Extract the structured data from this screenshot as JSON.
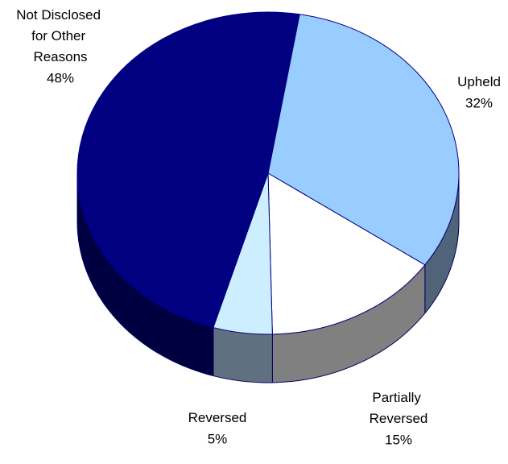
{
  "chart_data": {
    "type": "pie3d",
    "categories": [
      "Upheld",
      "Partially Reversed",
      "Reversed",
      "Not Disclosed for Other Reasons"
    ],
    "values": [
      32,
      15,
      5,
      48
    ],
    "value_labels": [
      "32%",
      "15%",
      "5%",
      "48%"
    ],
    "colors": [
      "#99ccff",
      "#ffffff",
      "#cceeff",
      "#000080"
    ],
    "side_colors": [
      "#4f6478",
      "#808080",
      "#607080",
      "#000040"
    ]
  }
}
